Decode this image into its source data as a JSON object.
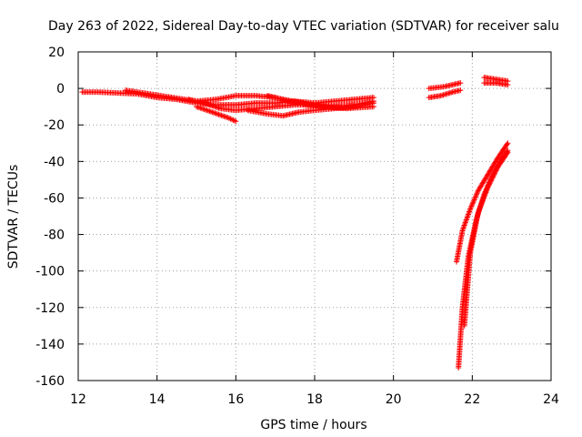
{
  "chart_data": {
    "type": "scatter",
    "title": "Day 263 of 2022, Sidereal Day-to-day VTEC variation (SDTVAR) for receiver salu",
    "xlabel": "GPS time / hours",
    "ylabel": "SDTVAR / TECUs",
    "xlim": [
      12,
      24
    ],
    "ylim": [
      -160,
      20
    ],
    "xticks": [
      12,
      14,
      16,
      18,
      20,
      22,
      24
    ],
    "yticks": [
      20,
      0,
      -20,
      -40,
      -60,
      -80,
      -100,
      -120,
      -140,
      -160
    ],
    "grid": true,
    "marker": "+",
    "series": [
      {
        "name": "SDTVAR",
        "color": "#ff0000",
        "tracks": [
          {
            "x": [
              12.1,
              12.5,
              13.0,
              13.5,
              14.0,
              14.5,
              15.0,
              15.5,
              16.0,
              16.5,
              17.0,
              17.5,
              18.0,
              18.5,
              19.0,
              19.5
            ],
            "y": [
              -2,
              -2,
              -2.5,
              -3,
              -5,
              -6,
              -8,
              -9,
              -9,
              -8,
              -8,
              -7,
              -8,
              -7,
              -6,
              -5
            ]
          },
          {
            "x": [
              13.2,
              13.8,
              14.4,
              15.0,
              15.5,
              16.0,
              16.5,
              17.0,
              17.5,
              18.0,
              18.5,
              19.0
            ],
            "y": [
              -1,
              -3,
              -5,
              -7,
              -6,
              -4,
              -4,
              -5,
              -8,
              -10,
              -10,
              -9
            ]
          },
          {
            "x": [
              14.8,
              15.2,
              15.6,
              16.0,
              16.5,
              17.0,
              17.5,
              18.0,
              18.5,
              19.0,
              19.5
            ],
            "y": [
              -6,
              -8,
              -11,
              -12,
              -11,
              -10,
              -9,
              -9,
              -10,
              -9,
              -7
            ]
          },
          {
            "x": [
              15.0,
              15.4,
              15.8,
              16.0
            ],
            "y": [
              -10,
              -13,
              -16,
              -18
            ]
          },
          {
            "x": [
              16.3,
              16.8,
              17.2,
              17.6,
              18.0,
              18.5,
              19.0,
              19.5
            ],
            "y": [
              -12,
              -14,
              -15,
              -13,
              -12,
              -11,
              -10,
              -8
            ]
          },
          {
            "x": [
              16.8,
              17.2,
              17.7,
              18.2,
              18.8,
              19.5
            ],
            "y": [
              -4,
              -6,
              -8,
              -10,
              -11,
              -10
            ]
          },
          {
            "x": [
              20.9,
              21.2,
              21.5,
              21.7
            ],
            "y": [
              -5,
              -4,
              -2,
              -1
            ]
          },
          {
            "x": [
              20.9,
              21.3,
              21.7
            ],
            "y": [
              0,
              1,
              3
            ]
          },
          {
            "x": [
              22.3,
              22.6,
              22.9
            ],
            "y": [
              6,
              5,
              4
            ]
          },
          {
            "x": [
              22.3,
              22.6,
              22.9
            ],
            "y": [
              3,
              3,
              2
            ]
          },
          {
            "x": [
              21.65,
              21.75,
              21.9,
              22.1,
              22.3,
              22.5,
              22.7,
              22.9
            ],
            "y": [
              -153,
              -120,
              -92,
              -72,
              -58,
              -48,
              -40,
              -34
            ]
          },
          {
            "x": [
              21.6,
              21.75,
              21.95,
              22.15,
              22.4,
              22.65,
              22.9
            ],
            "y": [
              -95,
              -78,
              -66,
              -56,
              -47,
              -38,
              -30
            ]
          },
          {
            "x": [
              21.8,
              21.95,
              22.15,
              22.4,
              22.65,
              22.9
            ],
            "y": [
              -130,
              -90,
              -68,
              -54,
              -43,
              -35
            ]
          }
        ]
      }
    ]
  }
}
